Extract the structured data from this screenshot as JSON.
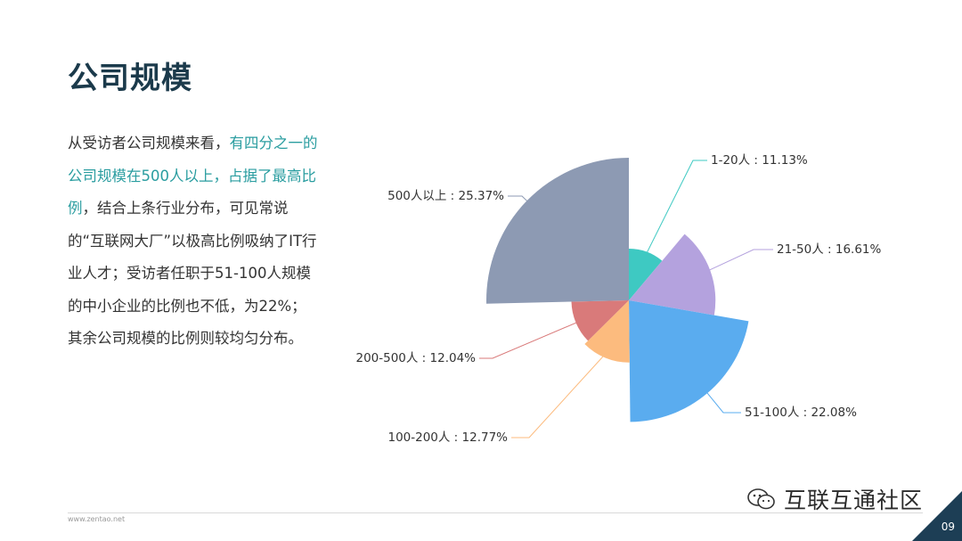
{
  "page": {
    "title": "公司规模",
    "paragraph": {
      "part1": "从受访者公司规模来看，",
      "highlight": "有四分之一的公司规模在500人以上，占据了最高比例",
      "part2": "，结合上条行业分布，可见常说的“互联网大厂”以极高比例吸纳了IT行业人才；受访者任职于51-100人规模的中小企业的比例也不低，为22%；其余公司规模的比例则较均匀分布。"
    },
    "footer_url": "www.zentao.net",
    "watermark_text": "互联互通社区",
    "page_number": "09"
  },
  "chart_data": {
    "type": "pie",
    "variant": "rose",
    "title": "",
    "slices": [
      {
        "name": "1-20人",
        "value": 11.13,
        "label": "1-20人 : 11.13%",
        "color": "#3ec9c2"
      },
      {
        "name": "21-50人",
        "value": 16.61,
        "label": "21-50人 : 16.61%",
        "color": "#b4a2de"
      },
      {
        "name": "51-100人",
        "value": 22.08,
        "label": "51-100人 : 22.08%",
        "color": "#5aacef"
      },
      {
        "name": "100-200人",
        "value": 12.77,
        "label": "100-200人 : 12.77%",
        "color": "#fcbb7e"
      },
      {
        "name": "200-500人",
        "value": 12.04,
        "label": "200-500人 : 12.04%",
        "color": "#d97a7a"
      },
      {
        "name": "500人以上",
        "value": 25.37,
        "label": "500人以上 : 25.37%",
        "color": "#8d9ab3"
      }
    ]
  }
}
